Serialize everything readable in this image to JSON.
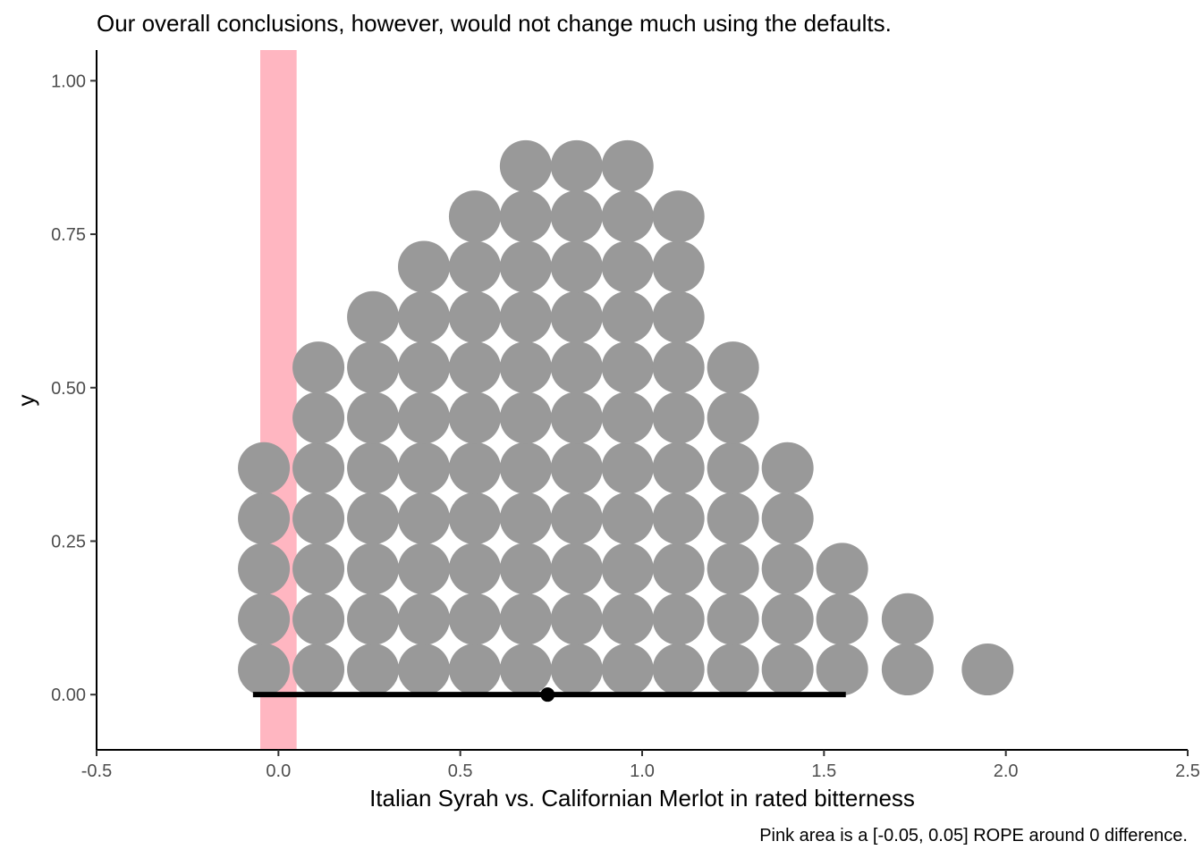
{
  "chart_data": {
    "type": "dotplot",
    "title": "Our overall conclusions, however, would not change much using the defaults.",
    "xlabel": "Italian Syrah vs. Californian Merlot in rated bitterness",
    "ylabel": "y",
    "caption": "Pink area is a [-0.05, 0.05] ROPE around 0 difference.",
    "xlim": [
      -0.5,
      2.5
    ],
    "ylim": [
      -0.09,
      1.05
    ],
    "x_ticks": [
      "-0.5",
      "0.0",
      "0.5",
      "1.0",
      "1.5",
      "2.0",
      "2.5"
    ],
    "y_ticks": [
      "0.00",
      "0.25",
      "0.50",
      "0.75",
      "1.00"
    ],
    "rope": {
      "xmin": -0.05,
      "xmax": 0.05,
      "color": "#FFB6C1"
    },
    "dot_color": "#999999",
    "dot_stacks": [
      {
        "x": -0.04,
        "count": 5
      },
      {
        "x": 0.11,
        "count": 7
      },
      {
        "x": 0.26,
        "count": 8
      },
      {
        "x": 0.4,
        "count": 9
      },
      {
        "x": 0.54,
        "count": 10
      },
      {
        "x": 0.68,
        "count": 11
      },
      {
        "x": 0.82,
        "count": 11
      },
      {
        "x": 0.96,
        "count": 11
      },
      {
        "x": 1.1,
        "count": 10
      },
      {
        "x": 1.25,
        "count": 7
      },
      {
        "x": 1.4,
        "count": 5
      },
      {
        "x": 1.55,
        "count": 3
      },
      {
        "x": 1.73,
        "count": 2
      },
      {
        "x": 1.95,
        "count": 1
      }
    ],
    "dot_step_y": 0.082,
    "dot_first_y": 0.041,
    "interval": {
      "low": -0.07,
      "high": 1.56,
      "point": 0.74,
      "y": 0.0
    }
  }
}
